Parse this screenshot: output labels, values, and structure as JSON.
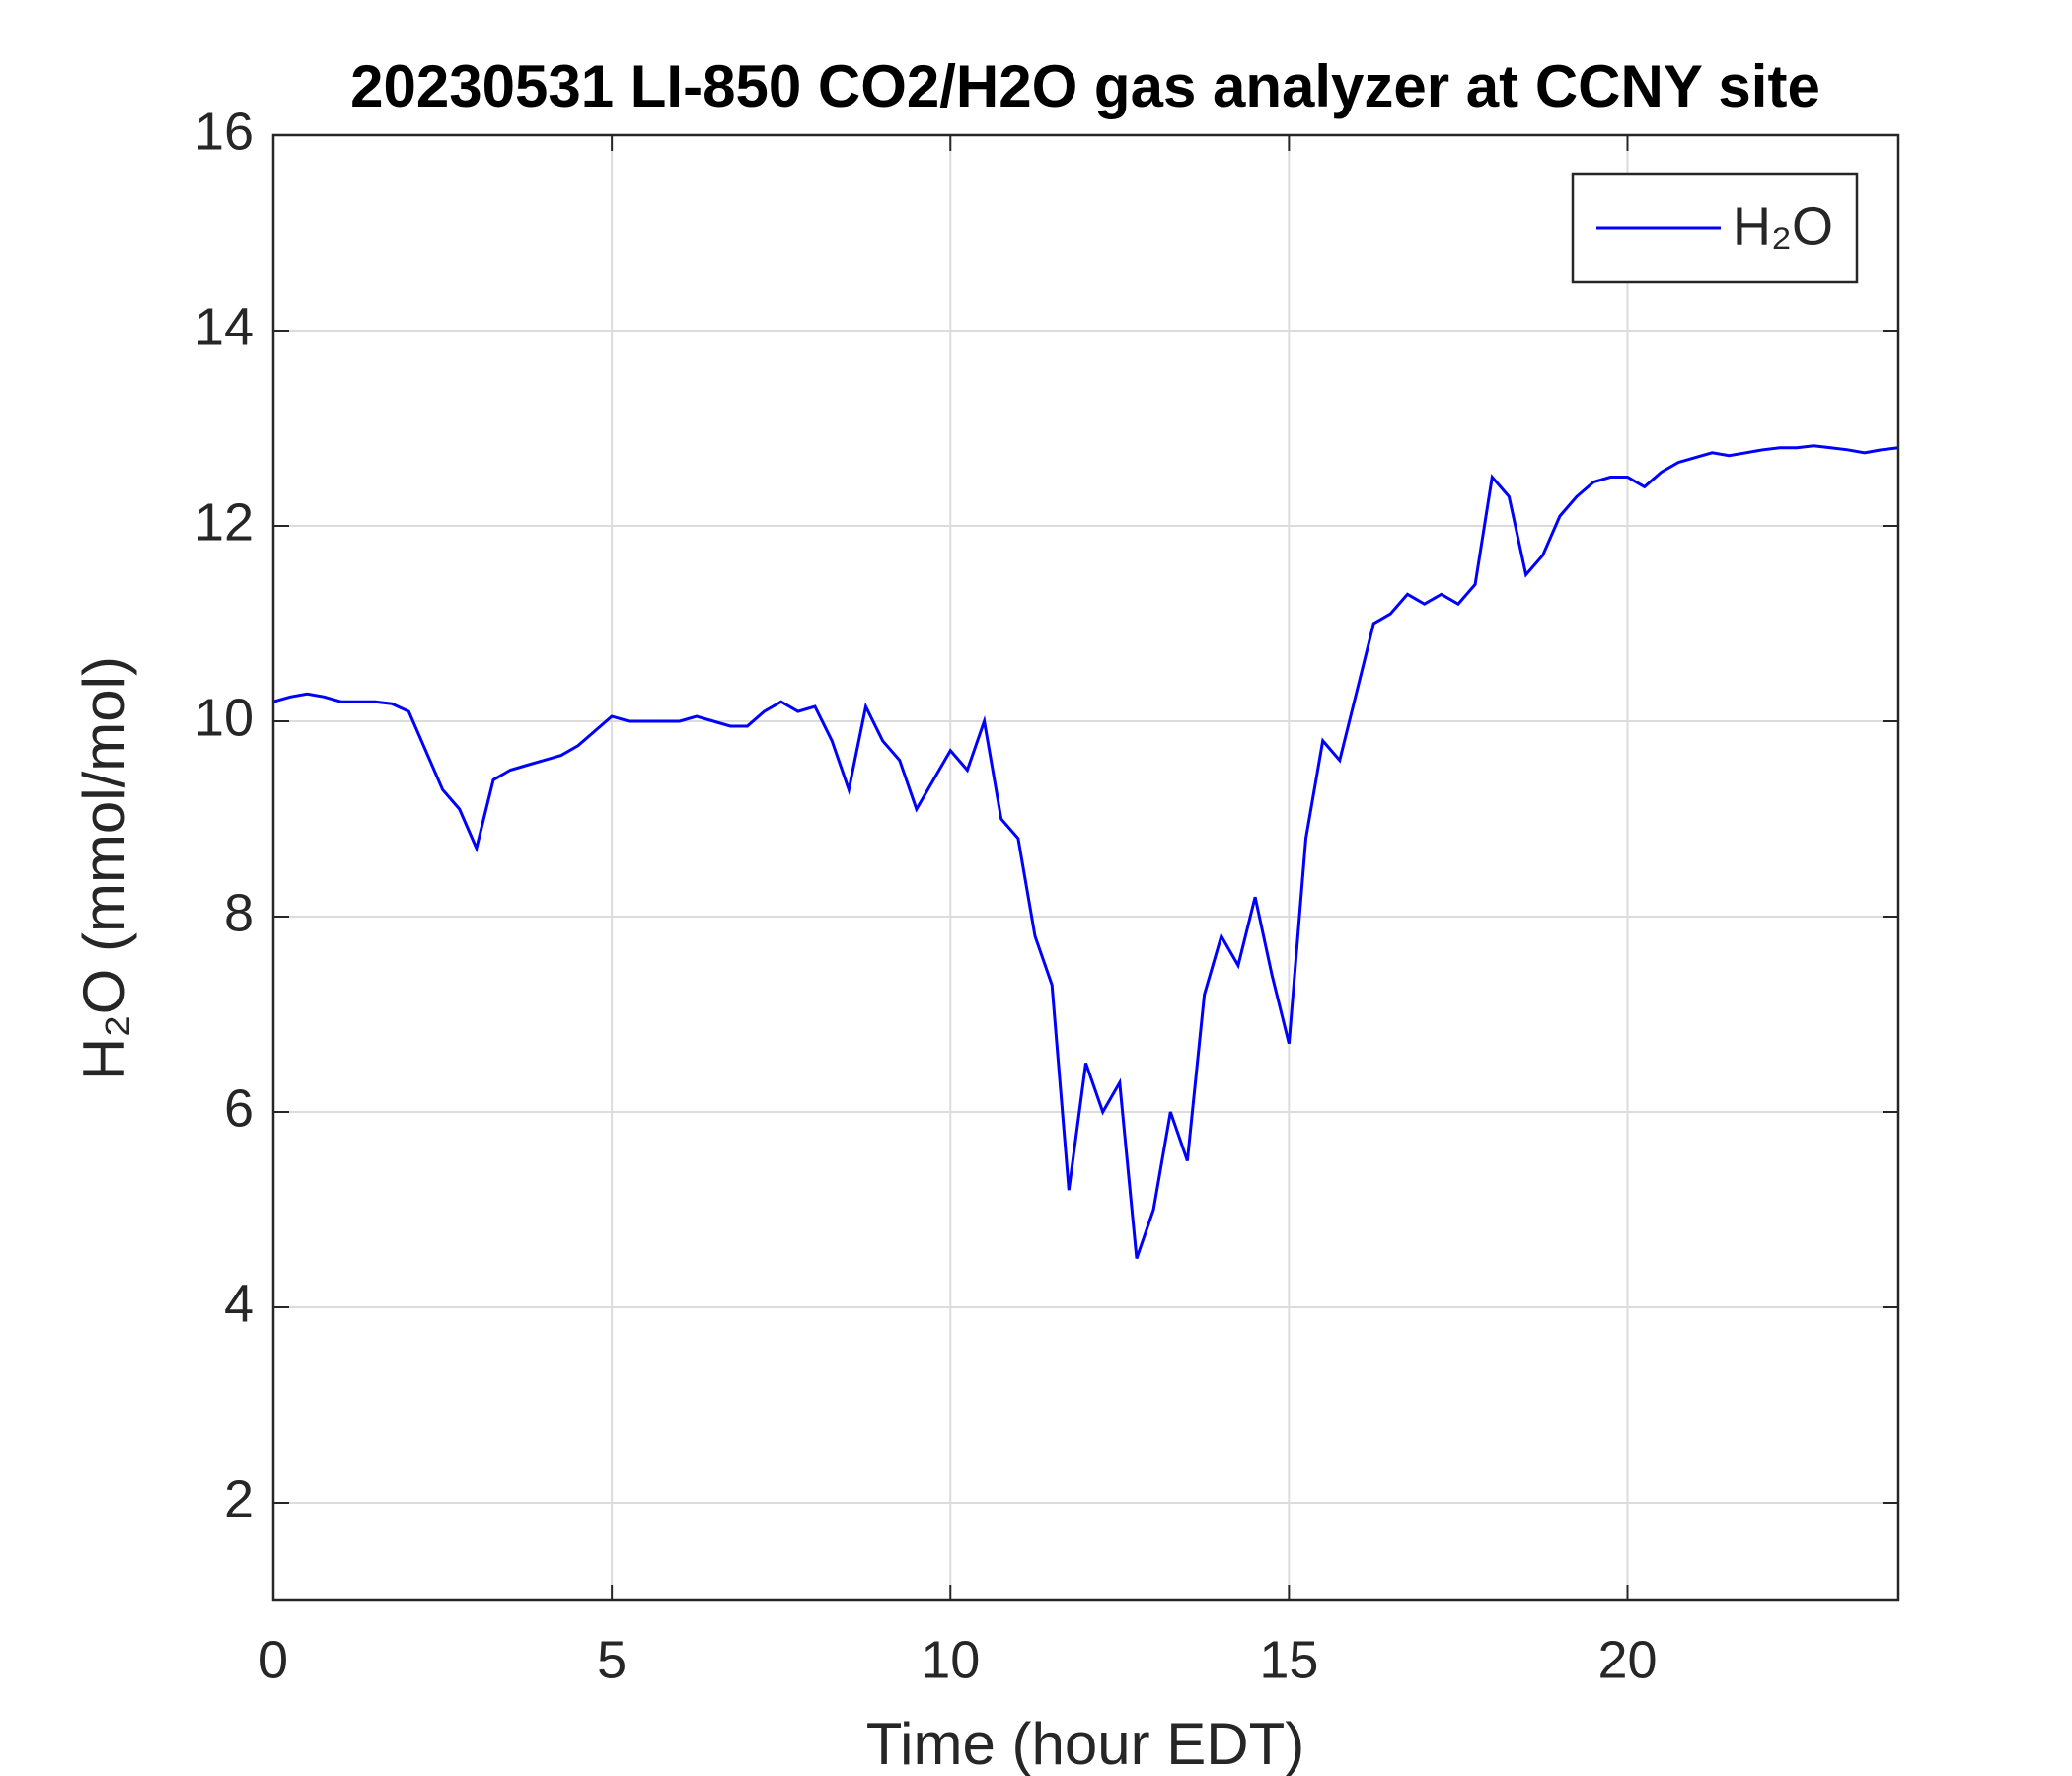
{
  "chart_data": {
    "type": "line",
    "title": "20230531 LI-850 CO2/H2O gas analyzer at CCNY site",
    "xlabel": "Time (hour EDT)",
    "ylabel": "H₂O (mmol/mol)",
    "x": [
      0,
      0.25,
      0.5,
      0.75,
      1,
      1.25,
      1.5,
      1.75,
      2,
      2.25,
      2.5,
      2.75,
      3,
      3.25,
      3.5,
      3.75,
      4,
      4.25,
      4.5,
      4.75,
      5,
      5.25,
      5.5,
      5.75,
      6,
      6.25,
      6.5,
      6.75,
      7,
      7.25,
      7.5,
      7.75,
      8,
      8.25,
      8.5,
      8.75,
      9,
      9.25,
      9.5,
      9.75,
      10,
      10.25,
      10.5,
      10.75,
      11,
      11.25,
      11.5,
      11.75,
      12,
      12.25,
      12.5,
      12.75,
      13,
      13.25,
      13.5,
      13.75,
      14,
      14.25,
      14.5,
      14.75,
      15,
      15.25,
      15.5,
      15.75,
      16,
      16.25,
      16.5,
      16.75,
      17,
      17.25,
      17.5,
      17.75,
      18,
      18.25,
      18.5,
      18.75,
      19,
      19.25,
      19.5,
      19.75,
      20,
      20.25,
      20.5,
      20.75,
      21,
      21.25,
      21.5,
      21.75,
      22,
      22.25,
      22.5,
      22.75,
      23,
      23.25,
      23.5,
      23.75,
      24
    ],
    "series": [
      {
        "name": "H₂O",
        "color": "#0000ff",
        "values": [
          10.2,
          10.25,
          10.28,
          10.25,
          10.2,
          10.2,
          10.2,
          10.18,
          10.1,
          9.7,
          9.3,
          9.1,
          8.7,
          9.4,
          9.5,
          9.55,
          9.6,
          9.65,
          9.75,
          9.9,
          10.05,
          10.0,
          10.0,
          10.0,
          10.0,
          10.05,
          10.0,
          9.95,
          9.95,
          10.1,
          10.2,
          10.1,
          10.15,
          9.8,
          9.3,
          10.15,
          9.8,
          9.6,
          9.1,
          9.4,
          9.7,
          9.5,
          10.0,
          9.0,
          8.8,
          7.8,
          7.3,
          5.2,
          6.5,
          6.0,
          6.3,
          4.5,
          5.0,
          6.0,
          5.5,
          7.2,
          7.8,
          7.5,
          8.2,
          7.4,
          6.7,
          8.8,
          9.8,
          9.6,
          10.3,
          11.0,
          11.1,
          11.3,
          11.2,
          11.3,
          11.2,
          11.4,
          12.5,
          12.3,
          11.5,
          11.7,
          12.1,
          12.3,
          12.45,
          12.5,
          12.5,
          12.4,
          12.55,
          12.65,
          12.7,
          12.75,
          12.72,
          12.75,
          12.78,
          12.8,
          12.8,
          12.82,
          12.8,
          12.78,
          12.75,
          12.78,
          12.8
        ]
      }
    ],
    "xlim": [
      0,
      24
    ],
    "xticks": [
      0,
      5,
      10,
      15,
      20
    ],
    "ylim": [
      1,
      16
    ],
    "yticks": [
      2,
      4,
      6,
      8,
      10,
      12,
      14,
      16
    ],
    "grid": true,
    "legend": "upper right"
  }
}
